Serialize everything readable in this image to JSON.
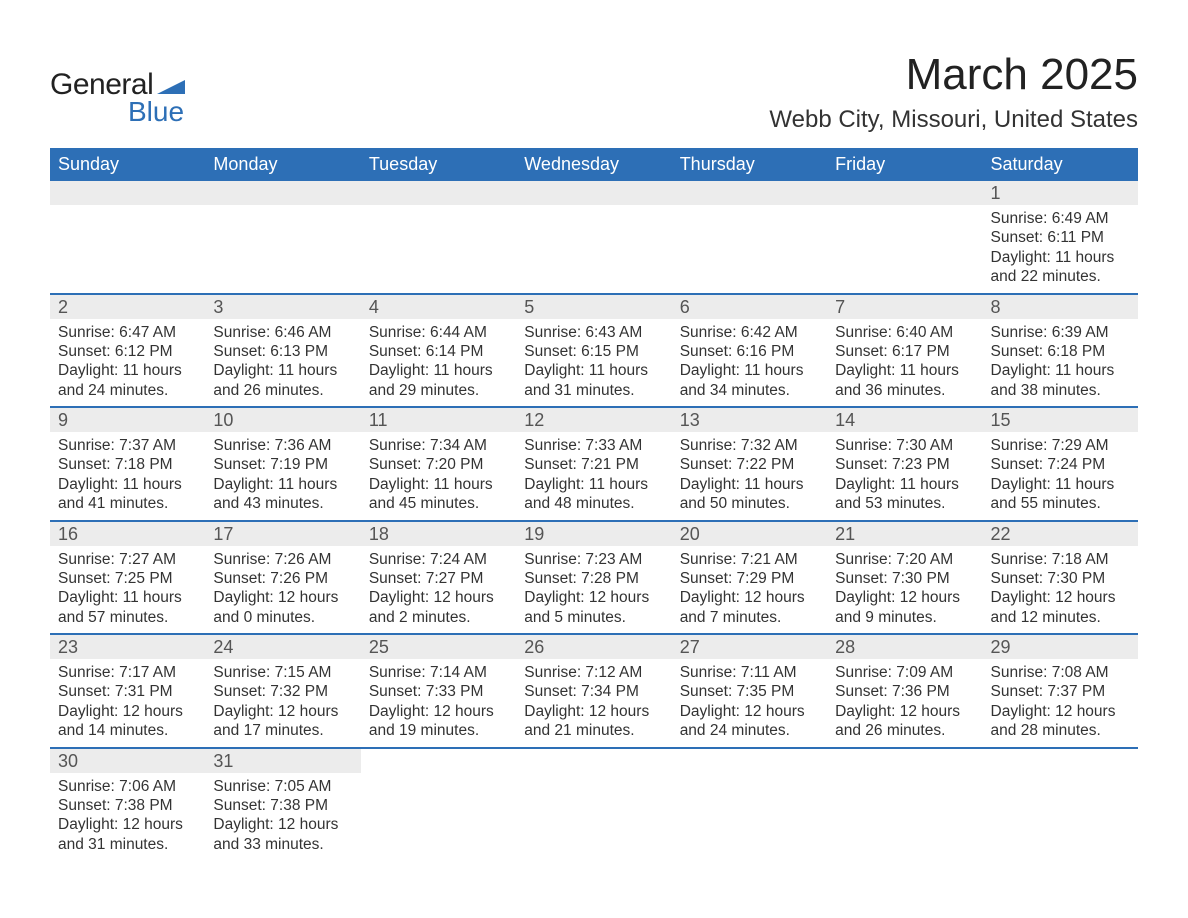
{
  "logo": {
    "text_top": "General",
    "text_bottom": "Blue",
    "shape_color": "#2d6fb6",
    "top_color": "#222222",
    "bottom_color": "#2d6fb6"
  },
  "header": {
    "title": "March 2025",
    "location": "Webb City, Missouri, United States"
  },
  "colors": {
    "header_bg": "#2d6fb6",
    "header_text": "#ffffff",
    "daynum_bg": "#ececec",
    "daynum_text": "#555555",
    "body_text": "#333333",
    "divider": "#2d6fb6",
    "page_bg": "#ffffff"
  },
  "typography": {
    "title_fontsize": 44,
    "location_fontsize": 24,
    "dow_fontsize": 18,
    "daynum_fontsize": 18,
    "body_fontsize": 15.5,
    "font_family": "Arial"
  },
  "layout": {
    "columns": 7,
    "rows": 6,
    "first_day_column": 6
  },
  "days_of_week": [
    "Sunday",
    "Monday",
    "Tuesday",
    "Wednesday",
    "Thursday",
    "Friday",
    "Saturday"
  ],
  "weeks": [
    [
      {
        "empty": true
      },
      {
        "empty": true
      },
      {
        "empty": true
      },
      {
        "empty": true
      },
      {
        "empty": true
      },
      {
        "empty": true
      },
      {
        "num": "1",
        "sunrise": "Sunrise: 6:49 AM",
        "sunset": "Sunset: 6:11 PM",
        "daylight": "Daylight: 11 hours and 22 minutes."
      }
    ],
    [
      {
        "num": "2",
        "sunrise": "Sunrise: 6:47 AM",
        "sunset": "Sunset: 6:12 PM",
        "daylight": "Daylight: 11 hours and 24 minutes."
      },
      {
        "num": "3",
        "sunrise": "Sunrise: 6:46 AM",
        "sunset": "Sunset: 6:13 PM",
        "daylight": "Daylight: 11 hours and 26 minutes."
      },
      {
        "num": "4",
        "sunrise": "Sunrise: 6:44 AM",
        "sunset": "Sunset: 6:14 PM",
        "daylight": "Daylight: 11 hours and 29 minutes."
      },
      {
        "num": "5",
        "sunrise": "Sunrise: 6:43 AM",
        "sunset": "Sunset: 6:15 PM",
        "daylight": "Daylight: 11 hours and 31 minutes."
      },
      {
        "num": "6",
        "sunrise": "Sunrise: 6:42 AM",
        "sunset": "Sunset: 6:16 PM",
        "daylight": "Daylight: 11 hours and 34 minutes."
      },
      {
        "num": "7",
        "sunrise": "Sunrise: 6:40 AM",
        "sunset": "Sunset: 6:17 PM",
        "daylight": "Daylight: 11 hours and 36 minutes."
      },
      {
        "num": "8",
        "sunrise": "Sunrise: 6:39 AM",
        "sunset": "Sunset: 6:18 PM",
        "daylight": "Daylight: 11 hours and 38 minutes."
      }
    ],
    [
      {
        "num": "9",
        "sunrise": "Sunrise: 7:37 AM",
        "sunset": "Sunset: 7:18 PM",
        "daylight": "Daylight: 11 hours and 41 minutes."
      },
      {
        "num": "10",
        "sunrise": "Sunrise: 7:36 AM",
        "sunset": "Sunset: 7:19 PM",
        "daylight": "Daylight: 11 hours and 43 minutes."
      },
      {
        "num": "11",
        "sunrise": "Sunrise: 7:34 AM",
        "sunset": "Sunset: 7:20 PM",
        "daylight": "Daylight: 11 hours and 45 minutes."
      },
      {
        "num": "12",
        "sunrise": "Sunrise: 7:33 AM",
        "sunset": "Sunset: 7:21 PM",
        "daylight": "Daylight: 11 hours and 48 minutes."
      },
      {
        "num": "13",
        "sunrise": "Sunrise: 7:32 AM",
        "sunset": "Sunset: 7:22 PM",
        "daylight": "Daylight: 11 hours and 50 minutes."
      },
      {
        "num": "14",
        "sunrise": "Sunrise: 7:30 AM",
        "sunset": "Sunset: 7:23 PM",
        "daylight": "Daylight: 11 hours and 53 minutes."
      },
      {
        "num": "15",
        "sunrise": "Sunrise: 7:29 AM",
        "sunset": "Sunset: 7:24 PM",
        "daylight": "Daylight: 11 hours and 55 minutes."
      }
    ],
    [
      {
        "num": "16",
        "sunrise": "Sunrise: 7:27 AM",
        "sunset": "Sunset: 7:25 PM",
        "daylight": "Daylight: 11 hours and 57 minutes."
      },
      {
        "num": "17",
        "sunrise": "Sunrise: 7:26 AM",
        "sunset": "Sunset: 7:26 PM",
        "daylight": "Daylight: 12 hours and 0 minutes."
      },
      {
        "num": "18",
        "sunrise": "Sunrise: 7:24 AM",
        "sunset": "Sunset: 7:27 PM",
        "daylight": "Daylight: 12 hours and 2 minutes."
      },
      {
        "num": "19",
        "sunrise": "Sunrise: 7:23 AM",
        "sunset": "Sunset: 7:28 PM",
        "daylight": "Daylight: 12 hours and 5 minutes."
      },
      {
        "num": "20",
        "sunrise": "Sunrise: 7:21 AM",
        "sunset": "Sunset: 7:29 PM",
        "daylight": "Daylight: 12 hours and 7 minutes."
      },
      {
        "num": "21",
        "sunrise": "Sunrise: 7:20 AM",
        "sunset": "Sunset: 7:30 PM",
        "daylight": "Daylight: 12 hours and 9 minutes."
      },
      {
        "num": "22",
        "sunrise": "Sunrise: 7:18 AM",
        "sunset": "Sunset: 7:30 PM",
        "daylight": "Daylight: 12 hours and 12 minutes."
      }
    ],
    [
      {
        "num": "23",
        "sunrise": "Sunrise: 7:17 AM",
        "sunset": "Sunset: 7:31 PM",
        "daylight": "Daylight: 12 hours and 14 minutes."
      },
      {
        "num": "24",
        "sunrise": "Sunrise: 7:15 AM",
        "sunset": "Sunset: 7:32 PM",
        "daylight": "Daylight: 12 hours and 17 minutes."
      },
      {
        "num": "25",
        "sunrise": "Sunrise: 7:14 AM",
        "sunset": "Sunset: 7:33 PM",
        "daylight": "Daylight: 12 hours and 19 minutes."
      },
      {
        "num": "26",
        "sunrise": "Sunrise: 7:12 AM",
        "sunset": "Sunset: 7:34 PM",
        "daylight": "Daylight: 12 hours and 21 minutes."
      },
      {
        "num": "27",
        "sunrise": "Sunrise: 7:11 AM",
        "sunset": "Sunset: 7:35 PM",
        "daylight": "Daylight: 12 hours and 24 minutes."
      },
      {
        "num": "28",
        "sunrise": "Sunrise: 7:09 AM",
        "sunset": "Sunset: 7:36 PM",
        "daylight": "Daylight: 12 hours and 26 minutes."
      },
      {
        "num": "29",
        "sunrise": "Sunrise: 7:08 AM",
        "sunset": "Sunset: 7:37 PM",
        "daylight": "Daylight: 12 hours and 28 minutes."
      }
    ],
    [
      {
        "num": "30",
        "sunrise": "Sunrise: 7:06 AM",
        "sunset": "Sunset: 7:38 PM",
        "daylight": "Daylight: 12 hours and 31 minutes."
      },
      {
        "num": "31",
        "sunrise": "Sunrise: 7:05 AM",
        "sunset": "Sunset: 7:38 PM",
        "daylight": "Daylight: 12 hours and 33 minutes."
      },
      {
        "empty": true
      },
      {
        "empty": true
      },
      {
        "empty": true
      },
      {
        "empty": true
      },
      {
        "empty": true
      }
    ]
  ]
}
